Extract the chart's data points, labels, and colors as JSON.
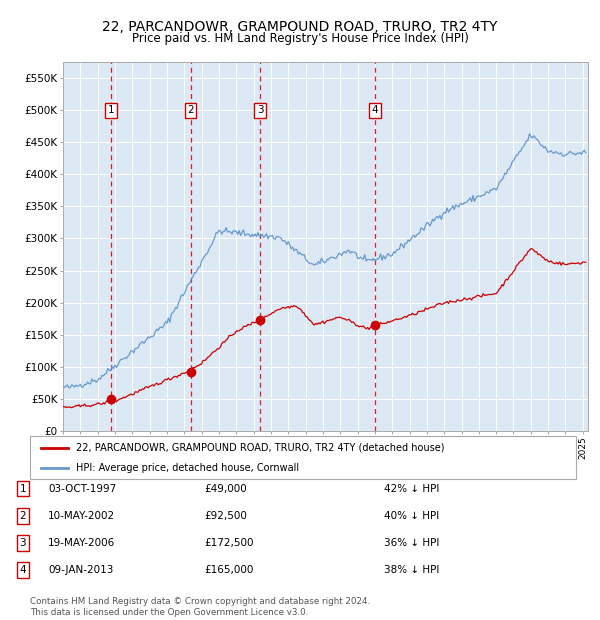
{
  "title": "22, PARCANDOWR, GRAMPOUND ROAD, TRURO, TR2 4TY",
  "subtitle": "Price paid vs. HM Land Registry's House Price Index (HPI)",
  "title_fontsize": 10,
  "subtitle_fontsize": 8.5,
  "bg_color": "#dce9f5",
  "grid_color": "#ffffff",
  "sale_dates": [
    1997.75,
    2002.36,
    2006.37,
    2013.02
  ],
  "sale_prices": [
    49000,
    92500,
    172500,
    165000
  ],
  "sale_labels": [
    "1",
    "2",
    "3",
    "4"
  ],
  "legend1": "22, PARCANDOWR, GRAMPOUND ROAD, TRURO, TR2 4TY (detached house)",
  "legend2": "HPI: Average price, detached house, Cornwall",
  "table_rows": [
    [
      "1",
      "03-OCT-1997",
      "£49,000",
      "42% ↓ HPI"
    ],
    [
      "2",
      "10-MAY-2002",
      "£92,500",
      "40% ↓ HPI"
    ],
    [
      "3",
      "19-MAY-2006",
      "£172,500",
      "36% ↓ HPI"
    ],
    [
      "4",
      "09-JAN-2013",
      "£165,000",
      "38% ↓ HPI"
    ]
  ],
  "footer": "Contains HM Land Registry data © Crown copyright and database right 2024.\nThis data is licensed under the Open Government Licence v3.0.",
  "red_color": "#cc0000",
  "blue_color": "#6699cc",
  "vline_color": "#cc0000",
  "ylim": [
    0,
    575000
  ],
  "yticks": [
    0,
    50000,
    100000,
    150000,
    200000,
    250000,
    300000,
    350000,
    400000,
    450000,
    500000,
    550000
  ],
  "ytick_labels": [
    "£0",
    "£50K",
    "£100K",
    "£150K",
    "£200K",
    "£250K",
    "£300K",
    "£350K",
    "£400K",
    "£450K",
    "£500K",
    "£550K"
  ]
}
